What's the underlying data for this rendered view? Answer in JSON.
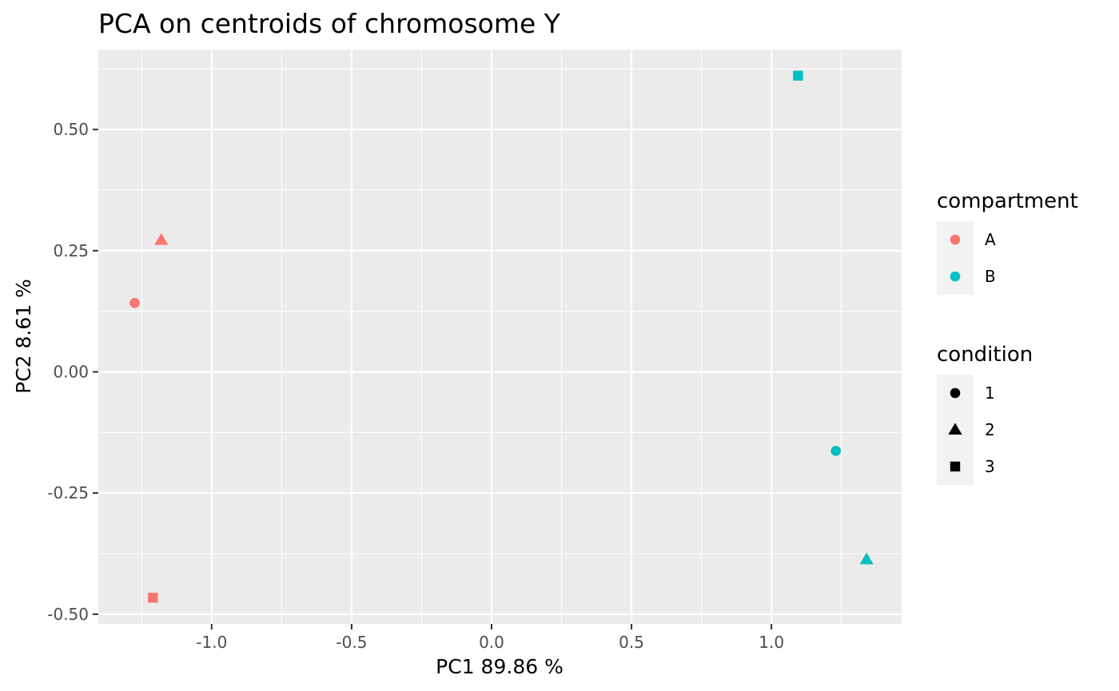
{
  "chart_data": {
    "type": "scatter",
    "title": "PCA on centroids of chromosome Y",
    "xlabel": "PC1  89.86 %",
    "ylabel": "PC2  8.61 %",
    "xlim": [
      -1.405,
      1.465
    ],
    "ylim": [
      -0.52,
      0.665
    ],
    "x_ticks": [
      -1.0,
      -0.5,
      0.0,
      0.5,
      1.0
    ],
    "x_tick_labels": [
      "-1.0",
      "-0.5",
      "0.0",
      "0.5",
      "1.0"
    ],
    "y_ticks": [
      -0.5,
      -0.25,
      0.0,
      0.25,
      0.5
    ],
    "y_tick_labels": [
      "-0.50",
      "-0.25",
      "0.00",
      "0.25",
      "0.50"
    ],
    "grid": true,
    "background": "#ebebeb",
    "points": [
      {
        "x": -1.275,
        "y": 0.142,
        "compartment": "A",
        "condition": "1"
      },
      {
        "x": -1.18,
        "y": 0.272,
        "compartment": "A",
        "condition": "2"
      },
      {
        "x": -1.21,
        "y": -0.466,
        "compartment": "A",
        "condition": "3"
      },
      {
        "x": 1.23,
        "y": -0.163,
        "compartment": "B",
        "condition": "1"
      },
      {
        "x": 1.34,
        "y": -0.387,
        "compartment": "B",
        "condition": "2"
      },
      {
        "x": 1.095,
        "y": 0.611,
        "compartment": "B",
        "condition": "3"
      }
    ],
    "legend_placement": "right",
    "legends": [
      {
        "title": "compartment",
        "aesthetic": "color",
        "entries": [
          {
            "label": "A",
            "color": "#f8766d",
            "shape": "circle"
          },
          {
            "label": "B",
            "color": "#00bfc4",
            "shape": "circle"
          }
        ]
      },
      {
        "title": "condition",
        "aesthetic": "shape",
        "entries": [
          {
            "label": "1",
            "color": "#000000",
            "shape": "circle"
          },
          {
            "label": "2",
            "color": "#000000",
            "shape": "triangle"
          },
          {
            "label": "3",
            "color": "#000000",
            "shape": "square"
          }
        ]
      }
    ],
    "colors": {
      "A": "#f8766d",
      "B": "#00bfc4"
    },
    "shapes": {
      "1": "circle",
      "2": "triangle",
      "3": "square"
    }
  }
}
